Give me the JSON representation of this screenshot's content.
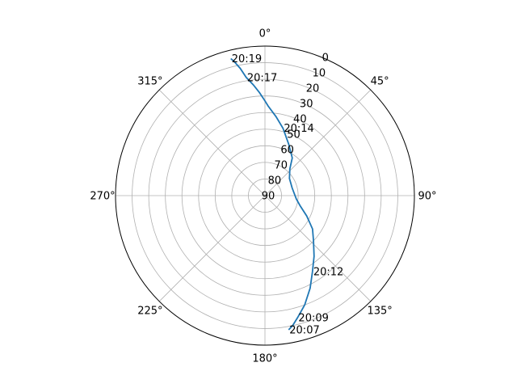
{
  "chart_data": {
    "type": "line",
    "projection": "polar",
    "theta_zero_location": "N",
    "theta_direction": "clockwise",
    "radial_axis": "elevation (0 at rim, 90 at center)",
    "theta_tick_labels": [
      "0°",
      "45°",
      "90°",
      "135°",
      "180°",
      "225°",
      "270°",
      "315°"
    ],
    "theta_ticks_deg": [
      0,
      45,
      90,
      135,
      180,
      225,
      270,
      315
    ],
    "r_tick_labels": [
      "0",
      "10",
      "20",
      "30",
      "40",
      "50",
      "60",
      "70",
      "80",
      "90"
    ],
    "r_ticks": [
      0,
      10,
      20,
      30,
      40,
      50,
      60,
      70,
      80,
      90
    ],
    "r_label_angle_deg": 22.5,
    "grid": true,
    "series": [
      {
        "color": "#1f77b4",
        "azimuth_deg": [
          170,
          168,
          165,
          160,
          154,
          148,
          141,
          133,
          125,
          116,
          106,
          96,
          74,
          55,
          43,
          36,
          25,
          15,
          8,
          2,
          0,
          357,
          354,
          351,
          349,
          347,
          346
        ],
        "elevation": [
          8,
          10,
          14,
          20,
          28,
          36,
          43,
          50,
          55,
          62,
          68,
          71,
          73,
          72,
          68,
          62,
          56,
          48,
          42,
          36,
          33,
          28,
          23,
          18,
          12,
          7,
          5
        ]
      }
    ],
    "annotations": [
      {
        "text": "20:07",
        "azimuth_deg": 170,
        "elevation": 8
      },
      {
        "text": "20:09",
        "azimuth_deg": 165,
        "elevation": 14
      },
      {
        "text": "20:12",
        "azimuth_deg": 148,
        "elevation": 36
      },
      {
        "text": "20:14",
        "azimuth_deg": 15,
        "elevation": 48
      },
      {
        "text": "20:17",
        "azimuth_deg": 351,
        "elevation": 18
      },
      {
        "text": "20:19",
        "azimuth_deg": 346,
        "elevation": 5
      }
    ]
  }
}
